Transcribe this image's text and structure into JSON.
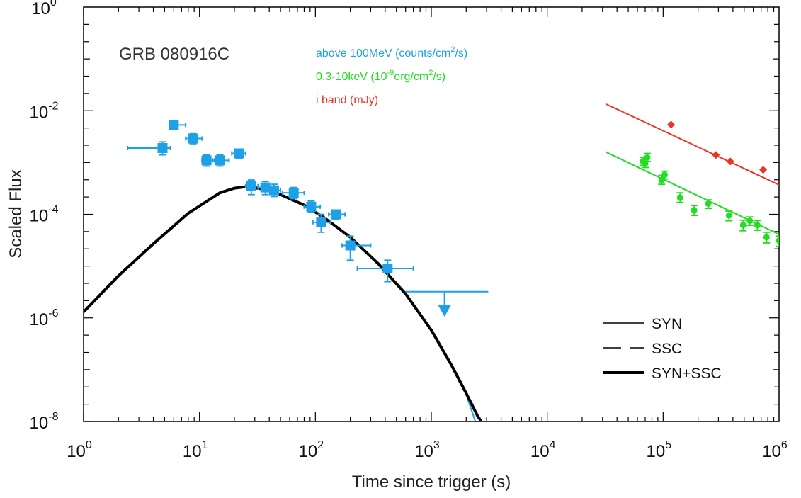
{
  "chart_data": {
    "type": "scatter",
    "title": "GRB 080916C",
    "xlabel": "Time since trigger (s)",
    "ylabel": "Scaled Flux",
    "xscale": "log",
    "yscale": "log",
    "xlim": [
      1,
      1000000
    ],
    "ylim": [
      1e-08,
      1
    ],
    "x_ticks": [
      {
        "value": 1,
        "base": "10",
        "exp": "0"
      },
      {
        "value": 10,
        "base": "10",
        "exp": "1"
      },
      {
        "value": 100,
        "base": "10",
        "exp": "2"
      },
      {
        "value": 1000,
        "base": "10",
        "exp": "3"
      },
      {
        "value": 10000,
        "base": "10",
        "exp": "4"
      },
      {
        "value": 100000,
        "base": "10",
        "exp": "5"
      },
      {
        "value": 1000000,
        "base": "10",
        "exp": "6"
      }
    ],
    "y_ticks": [
      {
        "value": 1,
        "base": "10",
        "exp": "0"
      },
      {
        "value": 0.01,
        "base": "10",
        "exp": "-2"
      },
      {
        "value": 0.0001,
        "base": "10",
        "exp": "-4"
      },
      {
        "value": 1e-06,
        "base": "10",
        "exp": "-6"
      },
      {
        "value": 1e-08,
        "base": "10",
        "exp": "-8"
      }
    ],
    "grid": false,
    "annotations": [
      {
        "prefix": "above 100MeV (counts/cm",
        "sup": "2",
        "suffix": "/s)",
        "color": "#1ea0e6"
      },
      {
        "prefix": "0.3-10keV (10",
        "sup": "-9",
        "suffix": "erg/cm",
        "sup2": "2",
        "suffix2": "/s)",
        "color": "#22dd22"
      },
      {
        "prefix": "i band (mJy)",
        "sup": "",
        "suffix": "",
        "color": "#ee3322"
      }
    ],
    "legend": {
      "placement": "bottom-right",
      "entries": [
        {
          "label": "SYN",
          "style": "solid-thin"
        },
        {
          "label": "SSC",
          "style": "dashed"
        },
        {
          "label": "SYN+SSC",
          "style": "solid-thick"
        }
      ]
    },
    "series": [
      {
        "name": "above 100MeV (counts/cm2/s)",
        "color": "#1ea0e6",
        "marker": "square",
        "points": [
          {
            "x": 4.8,
            "y": 0.0019,
            "xlo": 2.4,
            "xhi": 5.6,
            "ylo": 0.0014,
            "yhi": 0.0025
          },
          {
            "x": 6.0,
            "y": 0.0053,
            "xlo": 5.6,
            "xhi": 7.6,
            "ylo": 0.0045,
            "yhi": 0.0063
          },
          {
            "x": 8.8,
            "y": 0.0029,
            "xlo": 7.6,
            "xhi": 10.5,
            "ylo": 0.0023,
            "yhi": 0.0036
          },
          {
            "x": 11.5,
            "y": 0.0011,
            "xlo": 10.5,
            "xhi": 13.5,
            "ylo": 0.00085,
            "yhi": 0.0014
          },
          {
            "x": 15.0,
            "y": 0.0011,
            "xlo": 13.0,
            "xhi": 18.0,
            "ylo": 0.00085,
            "yhi": 0.0014
          },
          {
            "x": 22.0,
            "y": 0.0015,
            "xlo": 19.0,
            "xhi": 25.0,
            "ylo": 0.0012,
            "yhi": 0.0018
          },
          {
            "x": 28.0,
            "y": 0.00035,
            "xlo": 25.0,
            "xhi": 32.0,
            "ylo": 0.00024,
            "yhi": 0.00046
          },
          {
            "x": 37.0,
            "y": 0.00033,
            "xlo": 32.0,
            "xhi": 41.0,
            "ylo": 0.00024,
            "yhi": 0.00043
          },
          {
            "x": 44.0,
            "y": 0.00029,
            "xlo": 40.0,
            "xhi": 50.0,
            "ylo": 0.00022,
            "yhi": 0.00038
          },
          {
            "x": 65.0,
            "y": 0.00026,
            "xlo": 52.0,
            "xhi": 80.0,
            "ylo": 0.0002,
            "yhi": 0.00033
          },
          {
            "x": 92.0,
            "y": 0.00014,
            "xlo": 80.0,
            "xhi": 110.0,
            "ylo": 0.00011,
            "yhi": 0.00018
          },
          {
            "x": 112.0,
            "y": 7e-05,
            "xlo": 95.0,
            "xhi": 135.0,
            "ylo": 4.5e-05,
            "yhi": 0.0001
          },
          {
            "x": 150.0,
            "y": 0.0001,
            "xlo": 130.0,
            "xhi": 180.0,
            "ylo": 8e-05,
            "yhi": 0.00012
          },
          {
            "x": 200.0,
            "y": 2.5e-05,
            "xlo": 170.0,
            "xhi": 300.0,
            "ylo": 1.3e-05,
            "yhi": 3.8e-05
          },
          {
            "x": 420.0,
            "y": 9e-06,
            "xlo": 230.0,
            "xhi": 700.0,
            "ylo": 5e-06,
            "yhi": 1.3e-05
          }
        ],
        "upper_limit": {
          "x": 1300.0,
          "y": 3.2e-06,
          "xlo": 600.0,
          "xhi": 3100.0,
          "arrow_to": 1.2e-06
        }
      },
      {
        "name": "0.3-10keV (10^-9 erg/cm2/s)",
        "color": "#22dd22",
        "marker": "circle",
        "points": [
          {
            "x": 67000,
            "y": 0.00105,
            "ylo": 0.00088,
            "yhi": 0.00125
          },
          {
            "x": 70000,
            "y": 0.00095,
            "ylo": 0.0008,
            "yhi": 0.00115
          },
          {
            "x": 73000,
            "y": 0.00125,
            "ylo": 0.00105,
            "yhi": 0.0015
          },
          {
            "x": 97000,
            "y": 0.00046,
            "ylo": 0.00038,
            "yhi": 0.00056
          },
          {
            "x": 103000,
            "y": 0.00058,
            "ylo": 0.00048,
            "yhi": 0.00068
          },
          {
            "x": 140000,
            "y": 0.00021,
            "ylo": 0.00017,
            "yhi": 0.00026
          },
          {
            "x": 185000,
            "y": 0.00012,
            "ylo": 9.5e-05,
            "yhi": 0.000148
          },
          {
            "x": 245000,
            "y": 0.00016,
            "ylo": 0.00013,
            "yhi": 0.00019
          },
          {
            "x": 370000,
            "y": 9.5e-05,
            "ylo": 7.5e-05,
            "yhi": 0.000115
          },
          {
            "x": 490000,
            "y": 6.2e-05,
            "ylo": 4.8e-05,
            "yhi": 7.7e-05
          },
          {
            "x": 560000,
            "y": 7.5e-05,
            "ylo": 6.1e-05,
            "yhi": 8.9e-05
          },
          {
            "x": 650000,
            "y": 6.2e-05,
            "ylo": 4.9e-05,
            "yhi": 7.6e-05
          },
          {
            "x": 780000,
            "y": 3.6e-05,
            "ylo": 2.8e-05,
            "yhi": 4.5e-05
          },
          {
            "x": 1000000,
            "y": 3.1e-05,
            "ylo": 2.4e-05,
            "yhi": 3.8e-05
          }
        ],
        "fit_line": [
          {
            "x": 32000,
            "y": 0.0016
          },
          {
            "x": 1000000,
            "y": 4.1e-05
          }
        ]
      },
      {
        "name": "i band (mJy)",
        "color": "#ee3322",
        "marker": "diamond",
        "points": [
          {
            "x": 117000,
            "y": 0.0054
          },
          {
            "x": 285000,
            "y": 0.0014
          },
          {
            "x": 380000,
            "y": 0.00105
          },
          {
            "x": 730000,
            "y": 0.00072
          }
        ],
        "fit_line": [
          {
            "x": 32000,
            "y": 0.0135
          },
          {
            "x": 1000000,
            "y": 0.00037
          }
        ]
      }
    ],
    "model_curve": {
      "name": "SYN+SSC",
      "color": "#000000",
      "points": [
        {
          "x": 1,
          "y": 1.3e-06
        },
        {
          "x": 2,
          "y": 6.5e-06
        },
        {
          "x": 4,
          "y": 2.7e-05
        },
        {
          "x": 8,
          "y": 0.000105
        },
        {
          "x": 15,
          "y": 0.00026
        },
        {
          "x": 20,
          "y": 0.00032
        },
        {
          "x": 25,
          "y": 0.00034
        },
        {
          "x": 35,
          "y": 0.00031
        },
        {
          "x": 50,
          "y": 0.00024
        },
        {
          "x": 80,
          "y": 0.00015
        },
        {
          "x": 120,
          "y": 8.5e-05
        },
        {
          "x": 200,
          "y": 3.6e-05
        },
        {
          "x": 350,
          "y": 1.1e-05
        },
        {
          "x": 600,
          "y": 2.9e-06
        },
        {
          "x": 1000,
          "y": 5.8e-07
        },
        {
          "x": 1500,
          "y": 1.2e-07
        },
        {
          "x": 2000,
          "y": 3.5e-08
        },
        {
          "x": 2500,
          "y": 1.3e-08
        },
        {
          "x": 2700,
          "y": 1e-08
        }
      ],
      "syn_tail": {
        "color": "#1ea0e6",
        "points": [
          {
            "x": 1700,
            "y": 6.5e-08
          },
          {
            "x": 2000,
            "y": 3.3e-08
          },
          {
            "x": 2400,
            "y": 1e-08
          }
        ]
      }
    }
  }
}
